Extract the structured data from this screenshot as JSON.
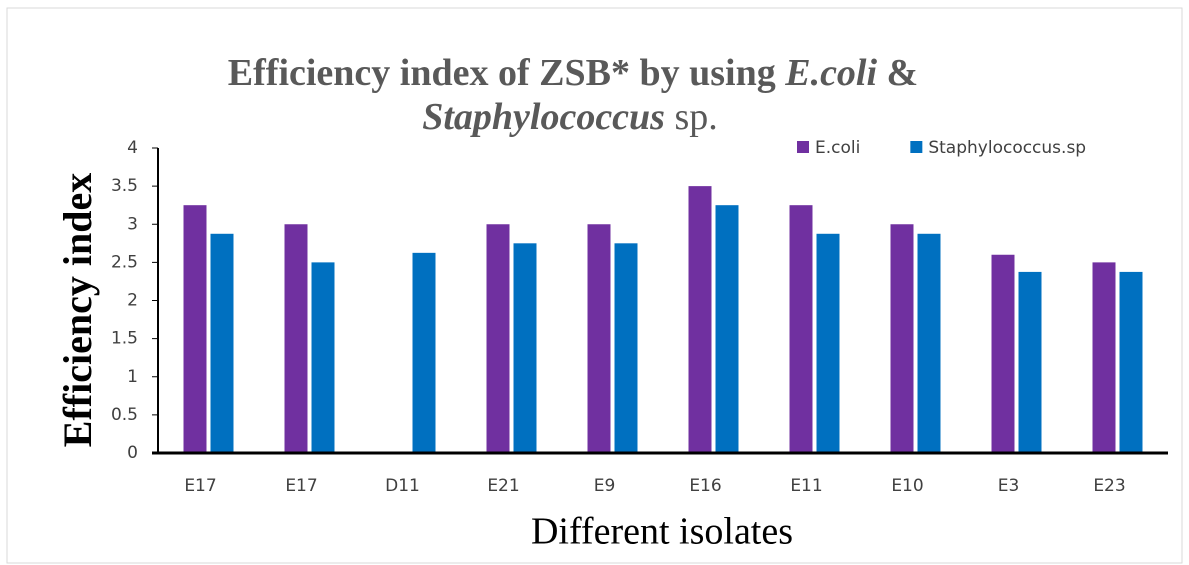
{
  "chart_data": {
    "type": "bar",
    "title": [
      "Efficiency index of ZSB* by using ",
      "E.coli",
      "  &",
      "Staphylococcus",
      " sp."
    ],
    "x_label": "Different isolates",
    "y_label": "Efficiency index",
    "categories": [
      "E17",
      "E17",
      "D11",
      "E21",
      "E9",
      "E16",
      "E11",
      "E10",
      "E3",
      "E23"
    ],
    "series": [
      {
        "name": "E.coli",
        "color": "#7030a0",
        "values": [
          3.25,
          3,
          0,
          3,
          3,
          3.5,
          3.25,
          3,
          2.6,
          2.5
        ]
      },
      {
        "name": "Staphylococcus.sp",
        "color": "#0070c0",
        "values": [
          2.875,
          2.5,
          2.625,
          2.75,
          2.75,
          3.25,
          2.875,
          2.875,
          2.375,
          2.375
        ]
      }
    ],
    "ylim": [
      0,
      4
    ],
    "yticks": [
      0,
      0.5,
      1,
      1.5,
      2,
      2.5,
      3,
      3.5,
      4
    ],
    "legend": "top-right",
    "grid": false
  }
}
